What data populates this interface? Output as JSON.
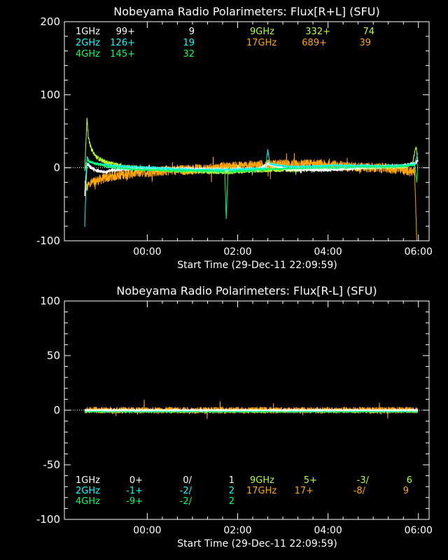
{
  "time_axis": {
    "start_time_label": "Start Time (29-Dec-11 22:09:59)",
    "tick_labels": [
      "00:00",
      "02:00",
      "04:00",
      "06:00"
    ],
    "tick_hours": [
      1.834,
      3.834,
      5.834,
      7.834
    ],
    "xlim_hours": [
      0,
      8.07
    ],
    "data_range_hours": [
      0.45,
      7.82
    ]
  },
  "band_colors": {
    "1GHz": "#ffffff",
    "2GHz": "#00ffff",
    "4GHz": "#00ff66",
    "9GHz": "#b8ff33",
    "17GHz": "#ffa500"
  },
  "chart_data": [
    {
      "type": "line",
      "title": "Nobeyama Radio Polarimeters: Flux[R+L] (SFU)",
      "xlabel": "Start Time (29-Dec-11 22:09:59)",
      "ylabel": "",
      "ylim": [
        -100,
        200
      ],
      "yticks": [
        -100,
        0,
        100,
        200
      ],
      "ytick_labels": [
        "-100",
        "0",
        "100",
        "200"
      ],
      "zero_line": true,
      "legend": [
        {
          "band": "1GHz",
          "value1": "99+",
          "value2": "9"
        },
        {
          "band": "2GHz",
          "value1": "126+",
          "value2": "19"
        },
        {
          "band": "4GHz",
          "value1": "145+",
          "value2": "32"
        },
        {
          "band": "9GHz",
          "value1": "332+",
          "value2": "74"
        },
        {
          "band": "17GHz",
          "value1": "689+",
          "value2": "39"
        }
      ],
      "series": [
        {
          "name": "17GHz",
          "noise": 7,
          "points": [
            [
              0.45,
              -20
            ],
            [
              0.5,
              -28
            ],
            [
              0.55,
              -22
            ],
            [
              0.7,
              -18
            ],
            [
              0.9,
              -14
            ],
            [
              1.2,
              -10
            ],
            [
              1.6,
              -7
            ],
            [
              2.0,
              -5
            ],
            [
              2.6,
              -3
            ],
            [
              3.2,
              -1
            ],
            [
              3.8,
              2
            ],
            [
              4.4,
              4
            ],
            [
              5.0,
              5
            ],
            [
              5.5,
              5
            ],
            [
              6.0,
              3
            ],
            [
              6.4,
              1
            ],
            [
              6.8,
              0
            ],
            [
              7.2,
              -1
            ],
            [
              7.5,
              -3
            ],
            [
              7.75,
              -6
            ],
            [
              7.8,
              -100
            ]
          ]
        },
        {
          "name": "9GHz",
          "noise": 3,
          "points": [
            [
              0.45,
              -5
            ],
            [
              0.5,
              70
            ],
            [
              0.53,
              40
            ],
            [
              0.6,
              25
            ],
            [
              0.7,
              15
            ],
            [
              0.9,
              8
            ],
            [
              1.2,
              3
            ],
            [
              1.6,
              0
            ],
            [
              2.5,
              -4
            ],
            [
              3.5,
              -6
            ],
            [
              4.2,
              -4
            ],
            [
              4.5,
              -3
            ],
            [
              5.0,
              -3
            ],
            [
              5.5,
              -2
            ],
            [
              6.0,
              -1
            ],
            [
              6.5,
              0
            ],
            [
              7.0,
              1
            ],
            [
              7.5,
              2
            ],
            [
              7.7,
              5
            ],
            [
              7.78,
              30
            ],
            [
              7.82,
              8
            ]
          ]
        },
        {
          "name": "1GHz",
          "noise": 2,
          "points": [
            [
              0.45,
              -40
            ],
            [
              0.5,
              5
            ],
            [
              0.6,
              0
            ],
            [
              0.7,
              -3
            ],
            [
              0.85,
              -6
            ],
            [
              1.0,
              -4
            ],
            [
              1.3,
              -2
            ],
            [
              1.8,
              -1
            ],
            [
              2.5,
              -2
            ],
            [
              3.5,
              -3
            ],
            [
              4.3,
              -2
            ],
            [
              4.5,
              5
            ],
            [
              5.0,
              -2
            ],
            [
              5.8,
              -3
            ],
            [
              6.3,
              -1
            ],
            [
              6.8,
              1
            ],
            [
              7.3,
              2
            ],
            [
              7.6,
              4
            ],
            [
              7.75,
              6
            ],
            [
              7.82,
              10
            ]
          ]
        },
        {
          "name": "2GHz",
          "noise": 1.5,
          "points": [
            [
              0.45,
              -80
            ],
            [
              0.5,
              15
            ],
            [
              0.55,
              8
            ],
            [
              0.7,
              6
            ],
            [
              1.0,
              3
            ],
            [
              1.5,
              1
            ],
            [
              2.0,
              0
            ],
            [
              2.5,
              -2
            ],
            [
              3.0,
              -3
            ],
            [
              3.5,
              -3
            ],
            [
              4.0,
              -2
            ],
            [
              4.45,
              -1
            ],
            [
              4.5,
              25
            ],
            [
              4.55,
              5
            ],
            [
              5.0,
              1
            ],
            [
              5.5,
              2
            ],
            [
              6.0,
              3
            ],
            [
              6.5,
              3
            ],
            [
              7.0,
              2
            ],
            [
              7.5,
              3
            ],
            [
              7.75,
              5
            ],
            [
              7.82,
              20
            ]
          ]
        },
        {
          "name": "4GHz",
          "noise": 1.5,
          "points": [
            [
              0.45,
              -5
            ],
            [
              0.5,
              10
            ],
            [
              0.7,
              5
            ],
            [
              1.0,
              1
            ],
            [
              1.5,
              -2
            ],
            [
              2.0,
              -3
            ],
            [
              2.5,
              -4
            ],
            [
              3.0,
              -4
            ],
            [
              3.55,
              -5
            ],
            [
              3.58,
              -70
            ],
            [
              3.62,
              -5
            ],
            [
              4.0,
              -4
            ],
            [
              4.5,
              -2
            ],
            [
              5.0,
              -1
            ],
            [
              5.5,
              0
            ],
            [
              6.0,
              0
            ],
            [
              6.5,
              1
            ],
            [
              7.0,
              1
            ],
            [
              7.5,
              2
            ],
            [
              7.75,
              4
            ],
            [
              7.8,
              -20
            ],
            [
              7.82,
              5
            ]
          ]
        }
      ]
    },
    {
      "type": "line",
      "title": "Nobeyama Radio Polarimeters: Flux[R-L] (SFU)",
      "xlabel": "Start Time (29-Dec-11 22:09:59)",
      "ylabel": "",
      "ylim": [
        -100,
        100
      ],
      "yticks": [
        -100,
        -50,
        0,
        50,
        100
      ],
      "ytick_labels": [
        "-100",
        "-50",
        "0",
        "50",
        "100"
      ],
      "zero_line": true,
      "legend": [
        {
          "band": "1GHz",
          "value1": "0+",
          "value2": "0/",
          "value3": "1"
        },
        {
          "band": "2GHz",
          "value1": "-1+",
          "value2": "-2/",
          "value3": "2"
        },
        {
          "band": "4GHz",
          "value1": "-9+",
          "value2": "-2/",
          "value3": "2"
        },
        {
          "band": "9GHz",
          "value1": "5+",
          "value2": "-3/",
          "value3": "6"
        },
        {
          "band": "17GHz",
          "value1": "17+",
          "value2": "-8/",
          "value3": "9"
        }
      ],
      "series": [
        {
          "name": "17GHz",
          "noise": 3,
          "points": [
            [
              0.45,
              0
            ],
            [
              2.0,
              0
            ],
            [
              4.0,
              0
            ],
            [
              6.0,
              0
            ],
            [
              7.82,
              0
            ]
          ]
        },
        {
          "name": "9GHz",
          "noise": 1.2,
          "points": [
            [
              0.45,
              -1
            ],
            [
              2.0,
              -1
            ],
            [
              4.0,
              -1
            ],
            [
              6.0,
              -1
            ],
            [
              7.82,
              -1
            ]
          ]
        },
        {
          "name": "2GHz",
          "noise": 0.6,
          "points": [
            [
              0.45,
              -1
            ],
            [
              2.0,
              -1
            ],
            [
              4.0,
              -1
            ],
            [
              6.0,
              -1
            ],
            [
              7.82,
              -1
            ]
          ]
        },
        {
          "name": "4GHz",
          "noise": 0.5,
          "points": [
            [
              0.45,
              -1
            ],
            [
              2.0,
              -1
            ],
            [
              4.0,
              -1
            ],
            [
              6.0,
              -1
            ],
            [
              7.82,
              -1
            ]
          ]
        },
        {
          "name": "1GHz",
          "noise": 0.3,
          "points": [
            [
              0.45,
              0
            ],
            [
              4.0,
              0
            ],
            [
              7.82,
              0
            ]
          ]
        }
      ]
    }
  ]
}
